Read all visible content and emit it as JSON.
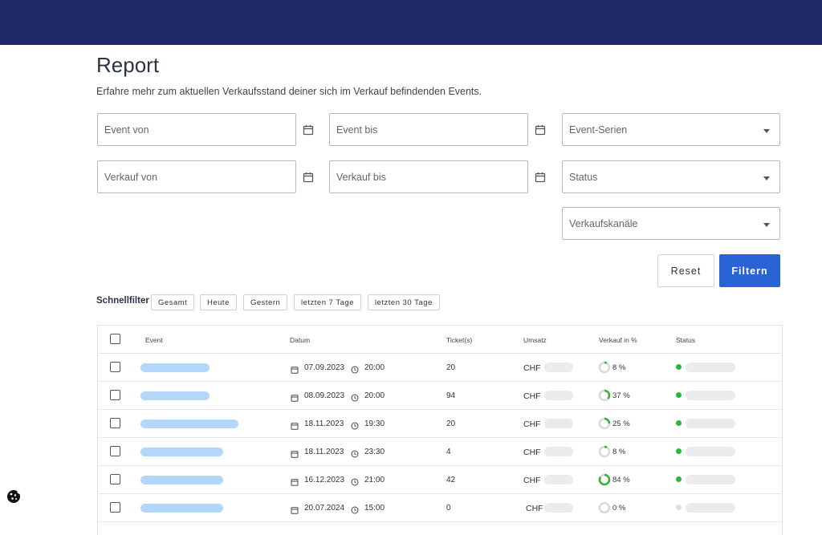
{
  "page": {
    "title": "Report",
    "subtitle": "Erfahre mehr zum aktuellen Verkaufsstand deiner sich im Verkauf befindenden Events."
  },
  "filters": {
    "event_von": "Event von",
    "event_bis": "Event bis",
    "event_serien": "Event-Serien",
    "verkauf_von": "Verkauf von",
    "verkauf_bis": "Verkauf bis",
    "status": "Status",
    "verkaufskanaele": "Verkaufskanäle",
    "reset_label": "Reset",
    "filter_label": "Filtern"
  },
  "quickfilter": {
    "label": "Schnellfilter",
    "chips": [
      "Gesamt",
      "Heute",
      "Gestern",
      "letzten 7 Tage",
      "letzten 30 Tage"
    ]
  },
  "table": {
    "headers": {
      "event": "Event",
      "datum": "Datum",
      "tickets": "Ticket(s)",
      "umsatz": "Umsatz",
      "verkauf": "Verkauf in %",
      "status": "Status"
    },
    "rows": [
      {
        "date": "07.09.2023",
        "time": "20:00",
        "tickets": "20",
        "currency": "CHF",
        "percent_label": "8 %",
        "percent": 8,
        "active": true
      },
      {
        "date": "08.09.2023",
        "time": "20:00",
        "tickets": "94",
        "currency": "CHF",
        "percent_label": "37 %",
        "percent": 37,
        "active": true
      },
      {
        "date": "18.11.2023",
        "time": "19:30",
        "tickets": "20",
        "currency": "CHF",
        "percent_label": "25 %",
        "percent": 25,
        "active": true
      },
      {
        "date": "18.11.2023",
        "time": "23:30",
        "tickets": "4",
        "currency": "CHF",
        "percent_label": "8 %",
        "percent": 8,
        "active": true
      },
      {
        "date": "16.12.2023",
        "time": "21:00",
        "tickets": "42",
        "currency": "CHF",
        "percent_label": "84 %",
        "percent": 84,
        "active": true
      },
      {
        "date": "20.07.2024",
        "time": "15:00",
        "tickets": "0",
        "currency": "CHF",
        "percent_label": "0 %",
        "percent": 0,
        "active": false
      }
    ]
  },
  "colors": {
    "header_bg": "#1f2766",
    "primary": "#2a63d6",
    "event_placeholder": "#b3d7fa",
    "status_active": "#2fb43b",
    "status_inactive": "#e0e0e0",
    "donut_track": "#d9d9d9",
    "donut_fill": "#2fb43b"
  },
  "icons": {
    "calendar": "calendar-icon",
    "clock": "clock-icon",
    "dropdown": "chevron-down-icon",
    "cookie": "cookie-icon"
  }
}
